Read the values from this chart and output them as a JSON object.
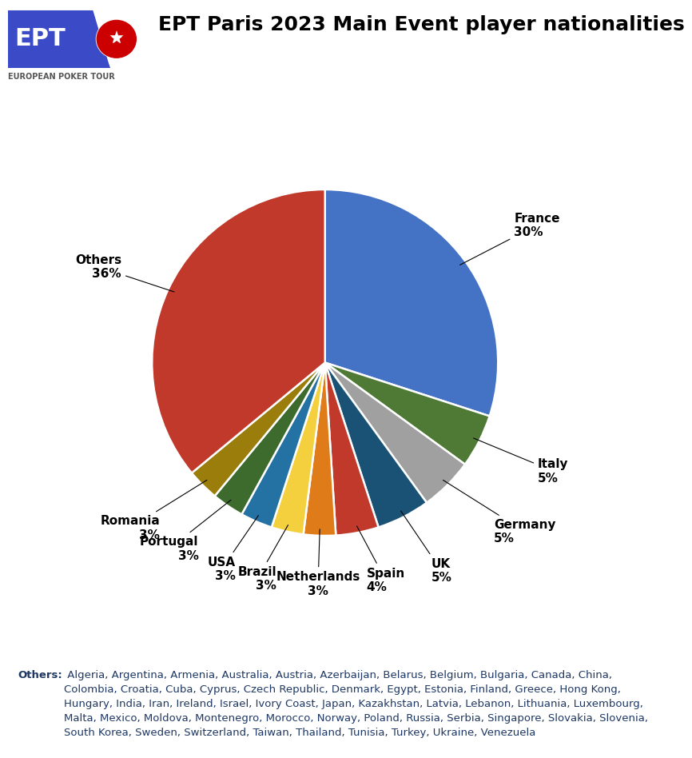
{
  "title": "EPT Paris 2023 Main Event player nationalities",
  "slices": [
    {
      "label": "France",
      "pct": 30,
      "color": "#4472C4"
    },
    {
      "label": "Italy",
      "pct": 5,
      "color": "#4E7A35"
    },
    {
      "label": "Germany",
      "pct": 5,
      "color": "#A0A0A0"
    },
    {
      "label": "UK",
      "pct": 5,
      "color": "#1A5276"
    },
    {
      "label": "Spain",
      "pct": 4,
      "color": "#C0392B"
    },
    {
      "label": "Netherlands",
      "pct": 3,
      "color": "#E07B1A"
    },
    {
      "label": "Brazil",
      "pct": 3,
      "color": "#F4D03F"
    },
    {
      "label": "USA",
      "pct": 3,
      "color": "#2471A3"
    },
    {
      "label": "Portugal",
      "pct": 3,
      "color": "#3D6B2E"
    },
    {
      "label": "Romania",
      "pct": 3,
      "color": "#9A7D0A"
    },
    {
      "label": "Others",
      "pct": 36,
      "color": "#C0392B"
    }
  ],
  "label_fontsize": 11,
  "title_fontsize": 18,
  "background_color": "#FFFFFF",
  "others_bold": "Others:",
  "others_rest": " Algeria, Argentina, Armenia, Australia, Austria, Azerbaijan, Belarus, Belgium, Bulgaria, Canada, China,\nColombia, Croatia, Cuba, Cyprus, Czech Republic, Denmark, Egypt, Estonia, Finland, Greece, Hong Kong,\nHungary, India, Iran, Ireland, Israel, Ivory Coast, Japan, Kazakhstan, Latvia, Lebanon, Lithuania, Luxembourg,\nMalta, Mexico, Moldova, Montenegro, Morocco, Norway, Poland, Russia, Serbia, Singapore, Slovakia, Slovenia,\nSouth Korea, Sweden, Switzerland, Taiwan, Thailand, Tunisia, Turkey, Ukraine, Venezuela",
  "text_color": "#1F3864",
  "logo_bg": "#3B4BC8",
  "logo_text": "EPT",
  "logo_sub": "EUROPEAN POKER TOUR"
}
